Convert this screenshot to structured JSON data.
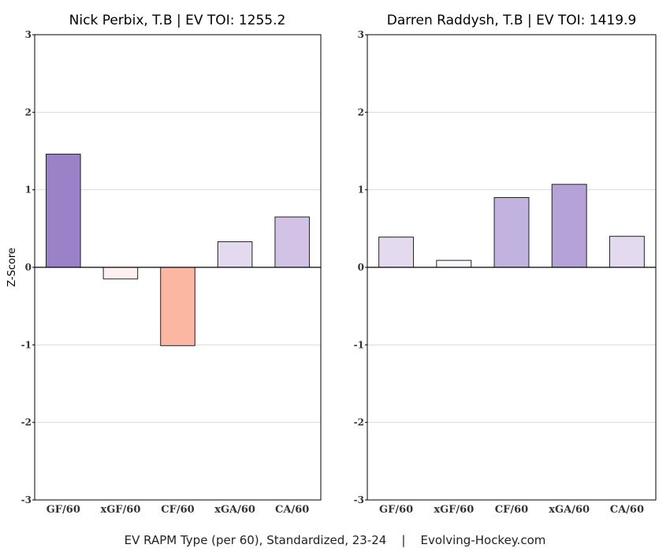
{
  "chart_data": [
    {
      "type": "bar",
      "title": "Nick Perbix, T.B  |  EV TOI: 1255.2",
      "ylabel": "Z-Score",
      "ylim": [
        -3,
        3
      ],
      "yticks": [
        "-3",
        "-2",
        "-1",
        "0",
        "1",
        "2",
        "3"
      ],
      "grid": true,
      "categories": [
        "GF/60",
        "xGF/60",
        "CF/60",
        "xGA/60",
        "CA/60"
      ],
      "values": [
        1.46,
        -0.15,
        -1.01,
        0.33,
        0.65
      ],
      "bar_colors": [
        "#9b81c8",
        "#fdf0ee",
        "#fbb7a2",
        "#e3daf0",
        "#d2c3e6"
      ]
    },
    {
      "type": "bar",
      "title": "Darren Raddysh, T.B  |  EV TOI: 1419.9",
      "ylabel": "",
      "ylim": [
        -3,
        3
      ],
      "yticks": [
        "-3",
        "-2",
        "-1",
        "0",
        "1",
        "2",
        "3"
      ],
      "grid": true,
      "categories": [
        "GF/60",
        "xGF/60",
        "CF/60",
        "xGA/60",
        "CA/60"
      ],
      "values": [
        0.39,
        0.09,
        0.9,
        1.07,
        0.4
      ],
      "bar_colors": [
        "#e3daf0",
        "#faf8fd",
        "#c2b2e0",
        "#b4a2d9",
        "#e3daf0"
      ]
    }
  ],
  "footer": "EV RAPM Type (per 60), Standardized, 23-24    |    Evolving-Hockey.com"
}
